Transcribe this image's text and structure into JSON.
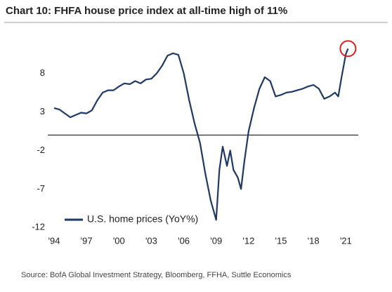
{
  "chart_data": {
    "type": "line",
    "title": "Chart 10: FHFA house price index at all-time high of 11%",
    "source": "Source:  BofA Global Investment Strategy, Bloomberg, FFHA, Suttle Economics",
    "x": [
      1994,
      1994.5,
      1995,
      1995.5,
      1996,
      1996.5,
      1997,
      1997.5,
      1998,
      1998.5,
      1999,
      1999.5,
      2000,
      2000.5,
      2001,
      2001.5,
      2002,
      2002.5,
      2003,
      2003.5,
      2004,
      2004.5,
      2005,
      2005.5,
      2006,
      2006.5,
      2007,
      2007.5,
      2008,
      2008.5,
      2009,
      2009.3,
      2009.6,
      2010,
      2010.3,
      2010.6,
      2011,
      2011.3,
      2011.6,
      2012,
      2012.5,
      2013,
      2013.5,
      2014,
      2014.5,
      2015,
      2015.5,
      2016,
      2016.5,
      2017,
      2017.5,
      2018,
      2018.5,
      2019,
      2019.5,
      2020,
      2020.3,
      2020.6,
      2021,
      2021.2
    ],
    "series": [
      {
        "name": "U.S. home prices (YoY%)",
        "color": "#1f3864",
        "values": [
          3.5,
          3.3,
          2.8,
          2.3,
          2.6,
          2.9,
          2.8,
          3.2,
          4.5,
          5.5,
          5.8,
          5.8,
          6.3,
          6.7,
          6.6,
          7.0,
          6.7,
          7.2,
          7.3,
          8.0,
          9.0,
          10.3,
          10.6,
          10.4,
          8.0,
          4.5,
          1.5,
          -1.0,
          -5.0,
          -8.5,
          -11.0,
          -4.5,
          -1.5,
          -4.0,
          -2.0,
          -4.5,
          -5.5,
          -7.0,
          -3.5,
          0.5,
          3.5,
          6.0,
          7.5,
          7.0,
          5.0,
          5.2,
          5.5,
          5.6,
          5.8,
          6.0,
          6.3,
          6.5,
          6.0,
          4.7,
          5.0,
          5.5,
          5.0,
          7.5,
          10.5,
          11.2
        ]
      }
    ],
    "xlim": [
      1994,
      2021.5
    ],
    "xticks": [
      {
        "value": 1994,
        "label": "'94"
      },
      {
        "value": 1997,
        "label": "'97"
      },
      {
        "value": 2000,
        "label": "'00"
      },
      {
        "value": 2003,
        "label": "'03"
      },
      {
        "value": 2006,
        "label": "'06"
      },
      {
        "value": 2009,
        "label": "'09"
      },
      {
        "value": 2012,
        "label": "'12"
      },
      {
        "value": 2015,
        "label": "'15"
      },
      {
        "value": 2018,
        "label": "'18"
      },
      {
        "value": 2021,
        "label": "'21"
      }
    ],
    "ylim": [
      -12.7,
      12.5
    ],
    "yticks": [
      8,
      3,
      -2,
      -7,
      -12
    ],
    "legend": "lower-left"
  }
}
